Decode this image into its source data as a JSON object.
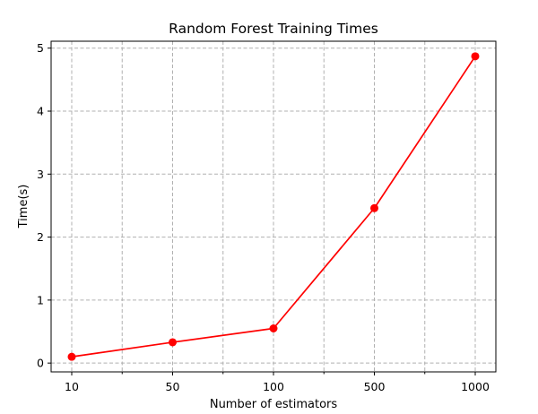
{
  "chart_data": {
    "type": "line",
    "title": "Random Forest Training Times",
    "xlabel": "Number of estimators",
    "ylabel": "Time(s)",
    "categories": [
      "10",
      "50",
      "100",
      "500",
      "1000"
    ],
    "series": [
      {
        "values": [
          0.1,
          0.33,
          0.55,
          2.46,
          4.87
        ],
        "color": "#ff0000",
        "marker": "circle"
      }
    ],
    "ylim": [
      -0.14,
      5.11
    ],
    "yticks": [
      0,
      1,
      2,
      3,
      4,
      5
    ],
    "grid": true,
    "grid_style": "dashed",
    "legend": false
  }
}
